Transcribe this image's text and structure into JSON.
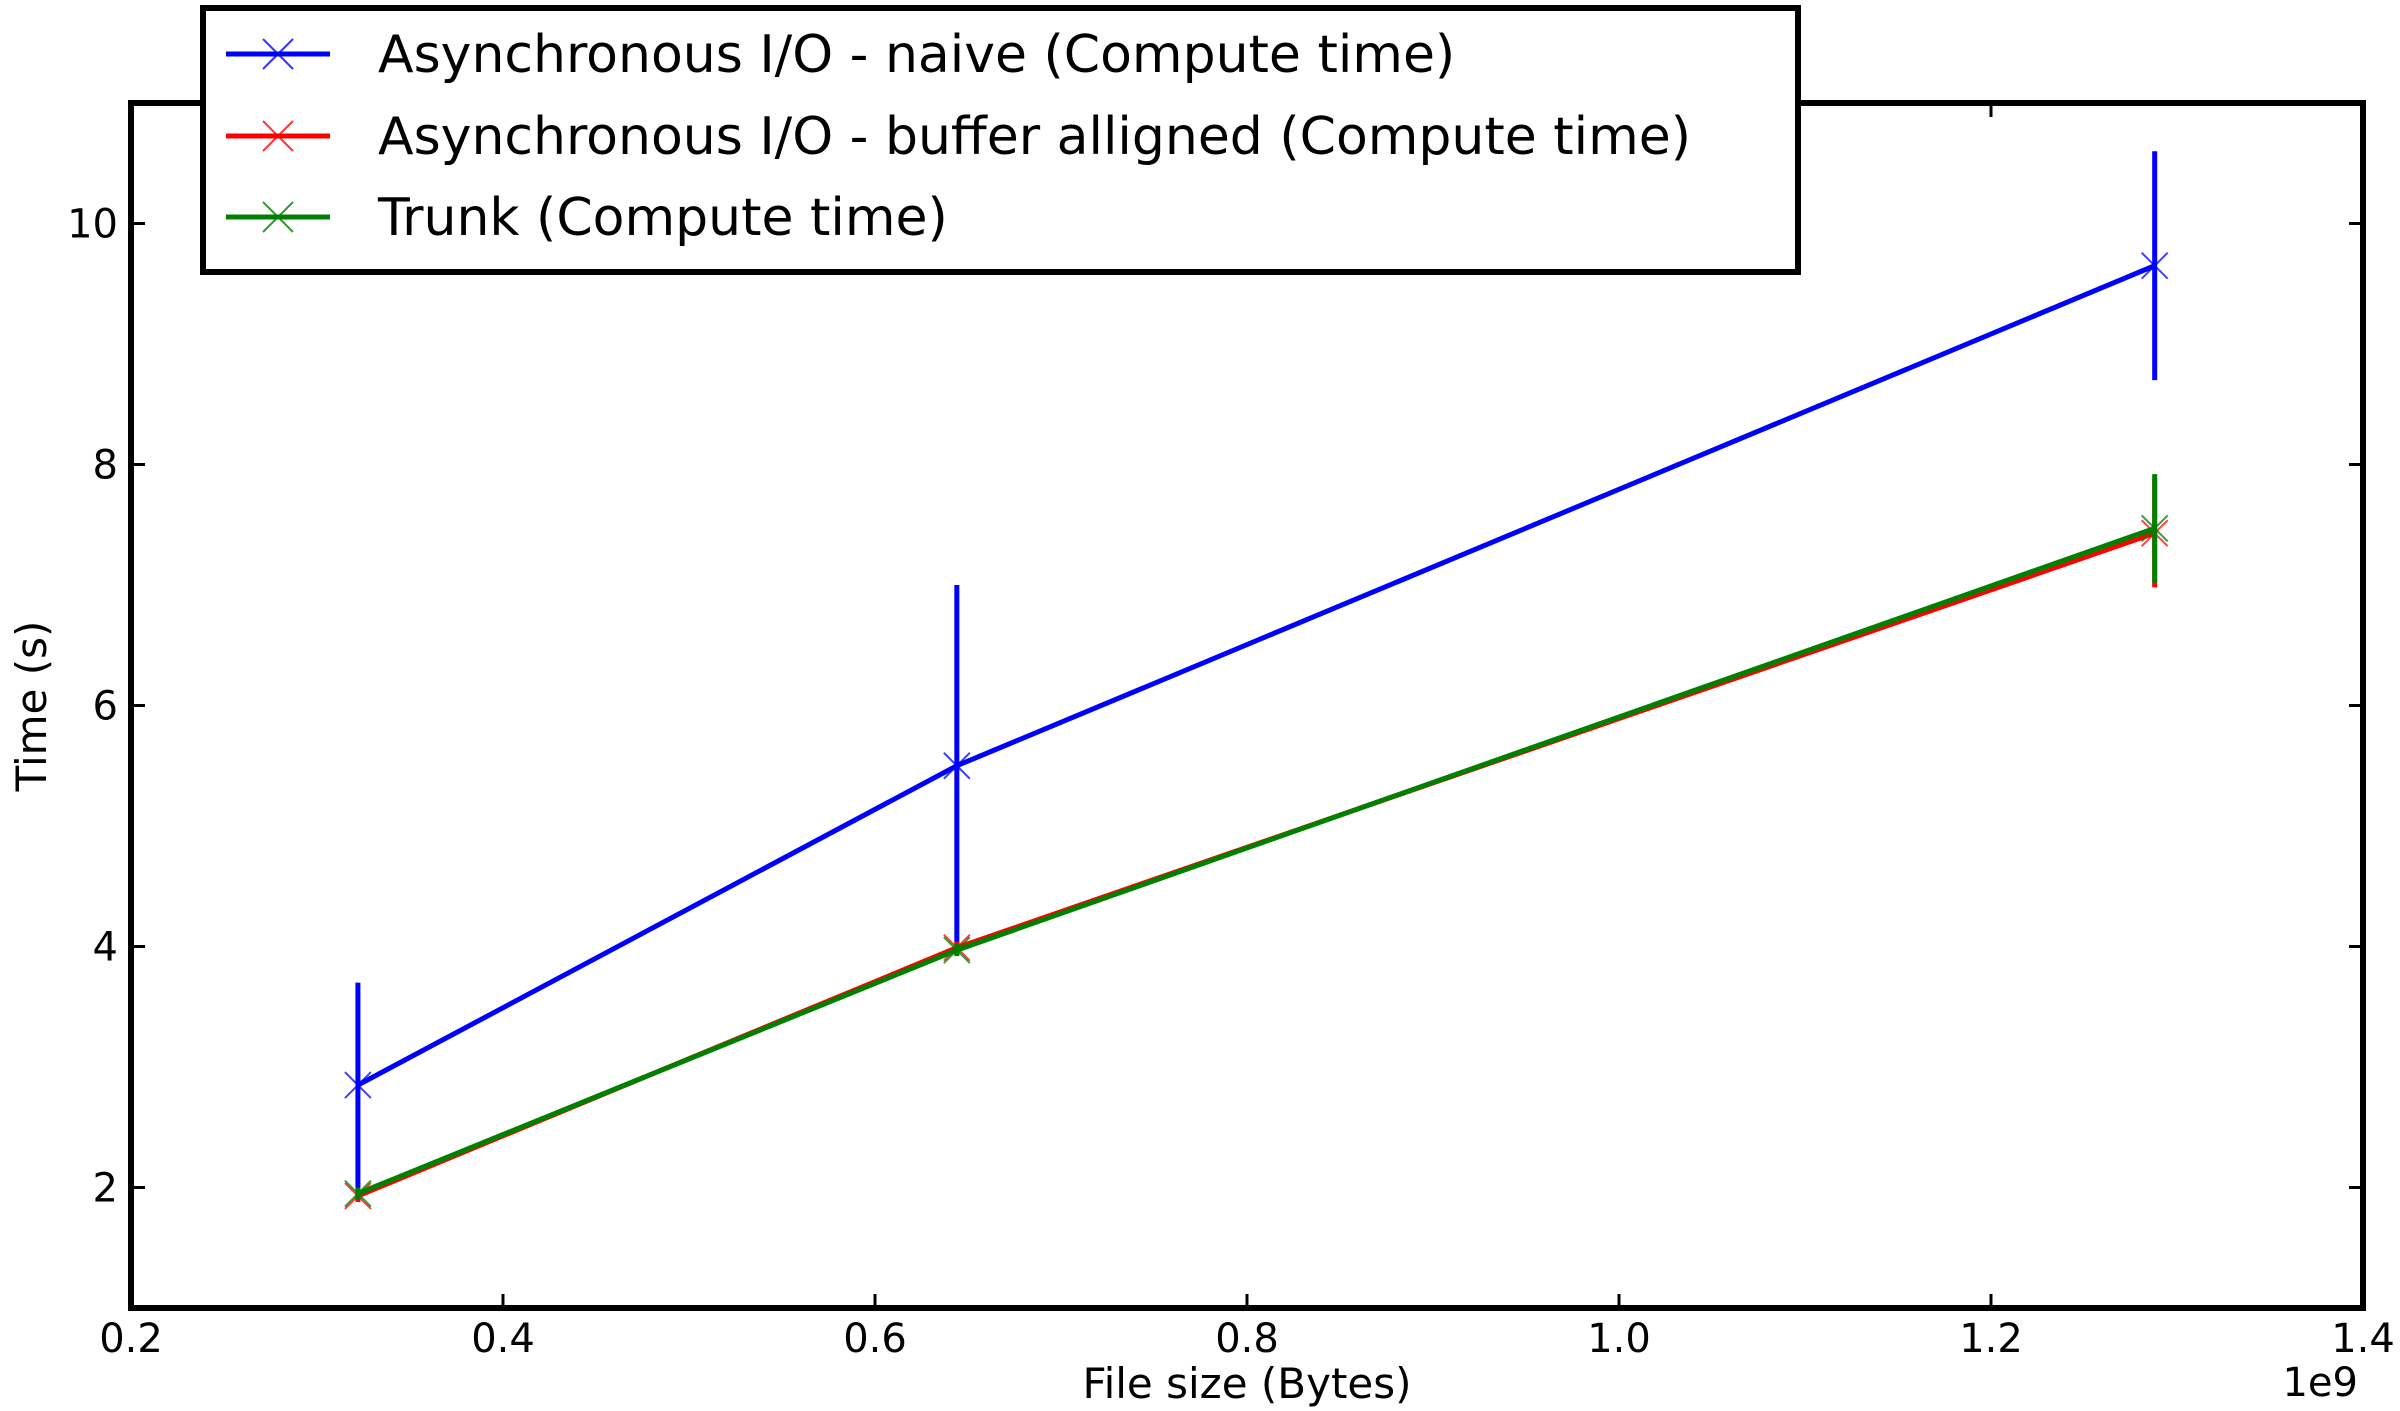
{
  "chart_data": {
    "type": "line",
    "xlabel": "File size (Bytes)",
    "ylabel": "Time (s)",
    "x_offset_text": "1e9",
    "xlim": [
      0.2,
      1.4
    ],
    "ylim": [
      1,
      11
    ],
    "xticks": [
      "0.2",
      "0.4",
      "0.6",
      "0.8",
      "1.0",
      "1.2",
      "1.4"
    ],
    "yticks": [
      "2",
      "4",
      "6",
      "8",
      "10"
    ],
    "grid": false,
    "legend_position": "upper-left",
    "series": [
      {
        "name": "Asynchronous I/O - naive (Compute time)",
        "color": "#0000ff",
        "marker": "x",
        "x": [
          0.322,
          0.644,
          1.288
        ],
        "y": [
          2.85,
          5.5,
          9.65
        ],
        "err": [
          0.85,
          1.5,
          0.95
        ]
      },
      {
        "name": "Asynchronous I/O - buffer alligned (Compute time)",
        "color": "#ff0000",
        "marker": "x",
        "x": [
          0.322,
          0.644,
          1.288
        ],
        "y": [
          1.93,
          3.99,
          7.43
        ],
        "err": [
          0.05,
          0.05,
          0.45
        ]
      },
      {
        "name": "Trunk (Compute time)",
        "color": "#008000",
        "marker": "x",
        "x": [
          0.322,
          0.644,
          1.288
        ],
        "y": [
          1.95,
          3.97,
          7.47
        ],
        "err": [
          0.05,
          0.05,
          0.45
        ]
      }
    ]
  }
}
